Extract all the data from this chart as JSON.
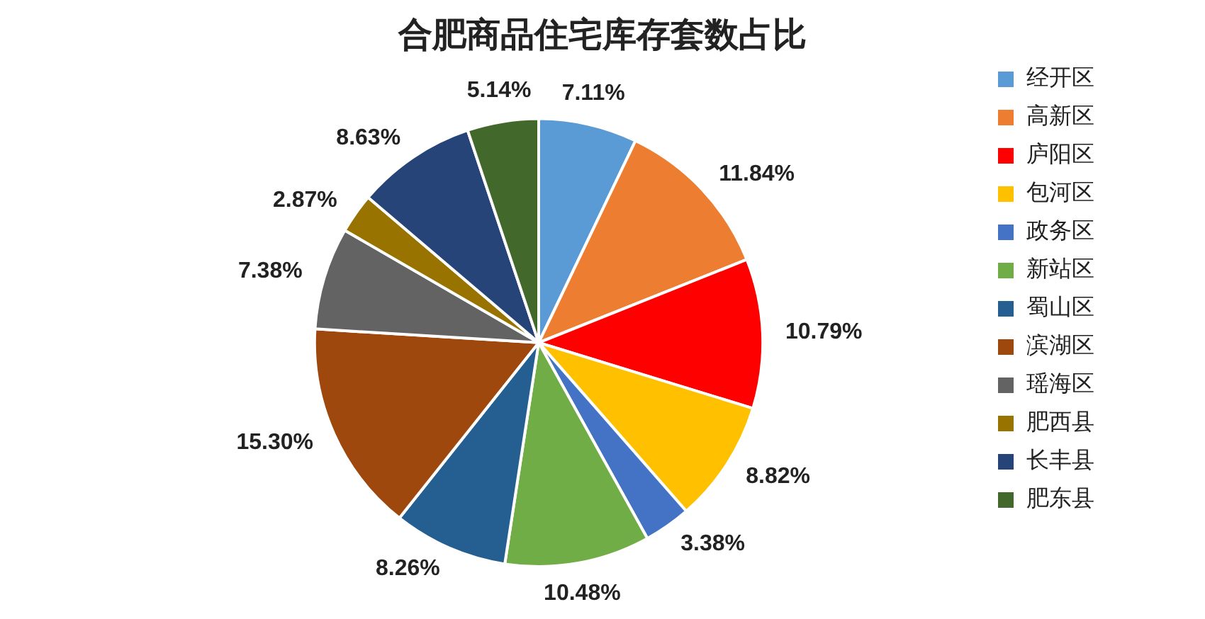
{
  "chart_data": {
    "type": "pie",
    "title": "合肥商品住宅库存套数占比",
    "categories": [
      "经开区",
      "高新区",
      "庐阳区",
      "包河区",
      "政务区",
      "新站区",
      "蜀山区",
      "滨湖区",
      "瑶海区",
      "肥西县",
      "长丰县",
      "肥东县"
    ],
    "values": [
      7.11,
      11.84,
      10.79,
      8.82,
      3.38,
      10.48,
      8.26,
      15.3,
      7.38,
      2.87,
      8.63,
      5.14
    ],
    "value_labels": [
      "7.11%",
      "11.84%",
      "10.79%",
      "8.82%",
      "3.38%",
      "10.48%",
      "8.26%",
      "15.30%",
      "7.38%",
      "2.87%",
      "8.63%",
      "5.14%"
    ],
    "colors": [
      "#5b9bd5",
      "#ed7d31",
      "#ff0000",
      "#ffc000",
      "#4472c4",
      "#70ad47",
      "#255e91",
      "#9e480e",
      "#636363",
      "#997300",
      "#264478",
      "#43682b"
    ],
    "legend": "right"
  }
}
